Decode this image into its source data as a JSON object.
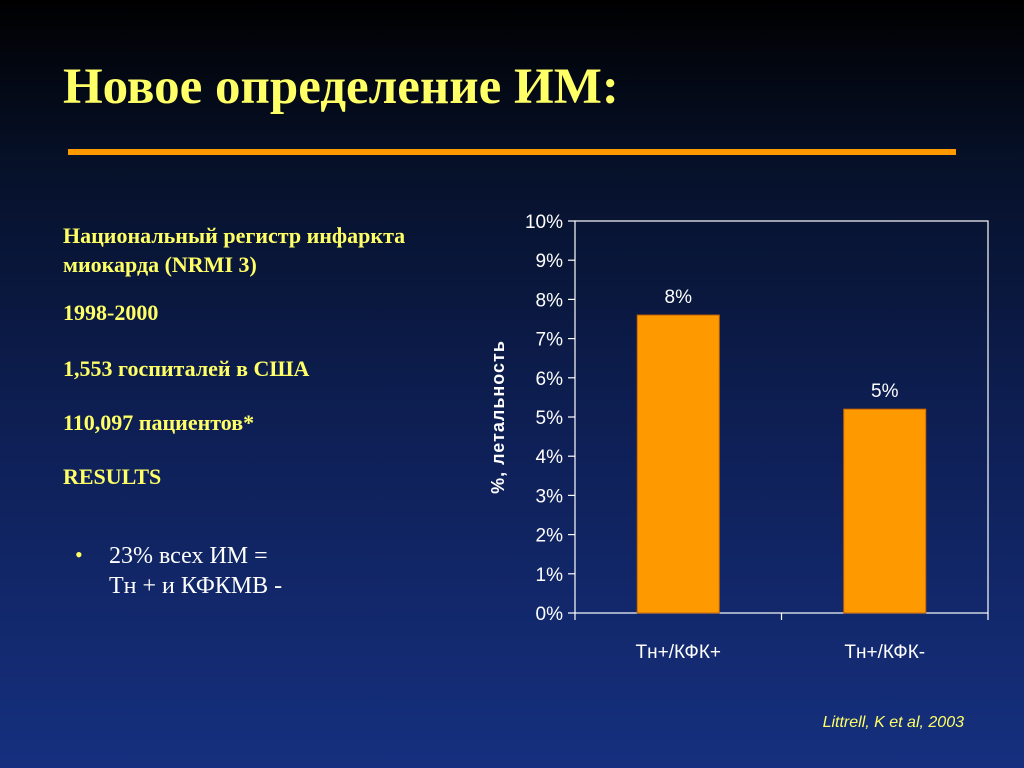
{
  "slide": {
    "title": "Новое определение ИМ:",
    "left_panel": {
      "registry_line1": "Национальный регистр инфаркта",
      "registry_line2": "миокарда  (NRMI 3)",
      "years": "1998-2000",
      "hospitals": "1,553 госпиталей в США",
      "patients": "110,097 пациентов*",
      "results_heading": "RESULTS",
      "bullet_line1": "23% всех ИМ =",
      "bullet_line2": "Тн + и КФКМВ -",
      "bullet_symbol": "•"
    },
    "citation": "Littrell, K et al, 2003"
  },
  "colors": {
    "title": "#ffff66",
    "accent_rule": "#ff9900",
    "bar_fill": "#ff9900",
    "bar_stroke": "#cc6600",
    "bullet_text": "#ffffff",
    "chart_text": "#ffffff"
  },
  "chart_data": {
    "type": "bar",
    "categories": [
      "Тн+/КФК+",
      "Тн+/КФК-"
    ],
    "values": [
      7.6,
      5.2
    ],
    "data_labels": [
      "8%",
      "5%"
    ],
    "ylabel": "%, летальность",
    "ylim": [
      0,
      10
    ],
    "yticks": [
      "0%",
      "1%",
      "2%",
      "3%",
      "4%",
      "5%",
      "6%",
      "7%",
      "8%",
      "9%",
      "10%"
    ],
    "grid": false
  }
}
